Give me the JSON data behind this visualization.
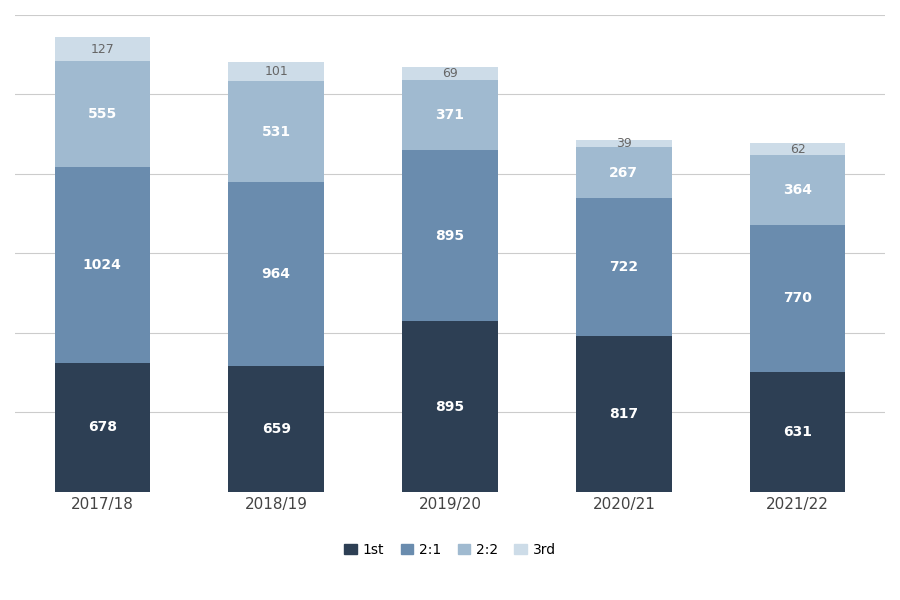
{
  "years": [
    "2017/18",
    "2018/19",
    "2019/20",
    "2020/21",
    "2021/22"
  ],
  "first": [
    678,
    659,
    895,
    817,
    631
  ],
  "two_one": [
    1024,
    964,
    895,
    722,
    770
  ],
  "two_two": [
    555,
    531,
    371,
    267,
    364
  ],
  "third": [
    127,
    101,
    69,
    39,
    62
  ],
  "colors": {
    "first": "#2d3f54",
    "two_one": "#6a8cae",
    "two_two": "#a0bad0",
    "third": "#cddce8"
  },
  "legend_labels": [
    "1st",
    "2:1",
    "2:2",
    "3rd"
  ],
  "bar_width": 0.55,
  "background_color": "#ffffff",
  "figsize": [
    9.0,
    6.0
  ],
  "dpi": 100,
  "ylim_max": 2500
}
